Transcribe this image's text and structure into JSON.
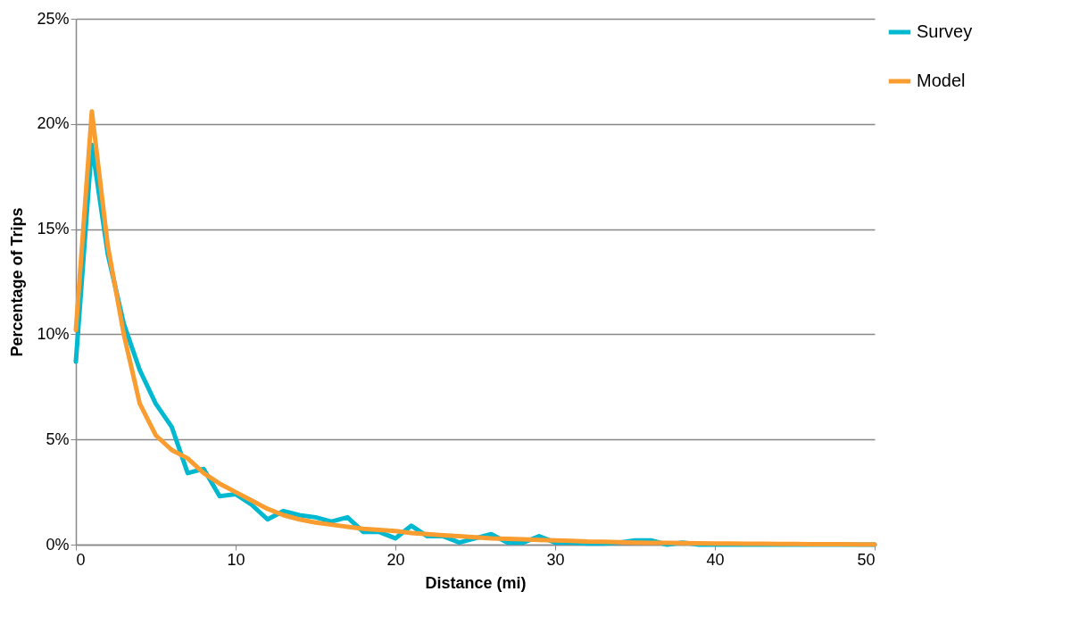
{
  "chart_data": {
    "type": "line",
    "xlabel": "Distance (mi)",
    "ylabel": "Percentage of Trips",
    "x": [
      0,
      1,
      2,
      3,
      4,
      5,
      6,
      7,
      8,
      9,
      10,
      11,
      12,
      13,
      14,
      15,
      16,
      17,
      18,
      19,
      20,
      21,
      22,
      23,
      24,
      25,
      26,
      27,
      28,
      29,
      30,
      31,
      32,
      33,
      34,
      35,
      36,
      37,
      38,
      39,
      40,
      41,
      42,
      43,
      44,
      45,
      46,
      47,
      48,
      49,
      50
    ],
    "series": [
      {
        "name": "Survey",
        "color": "#00b8d0",
        "values": [
          8.7,
          19.0,
          13.8,
          10.5,
          8.3,
          6.7,
          5.6,
          3.4,
          3.6,
          2.3,
          2.4,
          1.9,
          1.2,
          1.6,
          1.4,
          1.3,
          1.1,
          1.3,
          0.6,
          0.6,
          0.3,
          0.9,
          0.4,
          0.4,
          0.1,
          0.3,
          0.5,
          0.1,
          0.1,
          0.4,
          0.1,
          0.1,
          0.05,
          0.05,
          0.1,
          0.2,
          0.2,
          0,
          0.1,
          0,
          0,
          0,
          0,
          0,
          0,
          0,
          0,
          0,
          0,
          0,
          0
        ]
      },
      {
        "name": "Model",
        "color": "#f99d31",
        "values": [
          10.2,
          20.6,
          14.2,
          10.0,
          6.7,
          5.2,
          4.5,
          4.1,
          3.4,
          2.9,
          2.5,
          2.1,
          1.7,
          1.4,
          1.2,
          1.05,
          0.95,
          0.85,
          0.75,
          0.7,
          0.65,
          0.55,
          0.5,
          0.45,
          0.4,
          0.35,
          0.3,
          0.28,
          0.25,
          0.22,
          0.2,
          0.18,
          0.15,
          0.14,
          0.12,
          0.1,
          0.09,
          0.08,
          0.07,
          0.06,
          0.05,
          0.05,
          0.04,
          0.04,
          0.03,
          0.03,
          0.02,
          0.02,
          0.02,
          0.01,
          0.01
        ]
      }
    ],
    "xlim": [
      0,
      50
    ],
    "xticks": [
      0,
      10,
      20,
      30,
      40,
      50
    ],
    "ylim": [
      0,
      25
    ],
    "yticks": [
      {
        "value": 0,
        "label": "0%"
      },
      {
        "value": 5,
        "label": "5%"
      },
      {
        "value": 10,
        "label": "10%"
      },
      {
        "value": 15,
        "label": "15%"
      },
      {
        "value": 20,
        "label": "20%"
      },
      {
        "value": 25,
        "label": "25%"
      }
    ],
    "grid": "y",
    "legend": "right",
    "marker": "none",
    "line_style": "solid"
  }
}
